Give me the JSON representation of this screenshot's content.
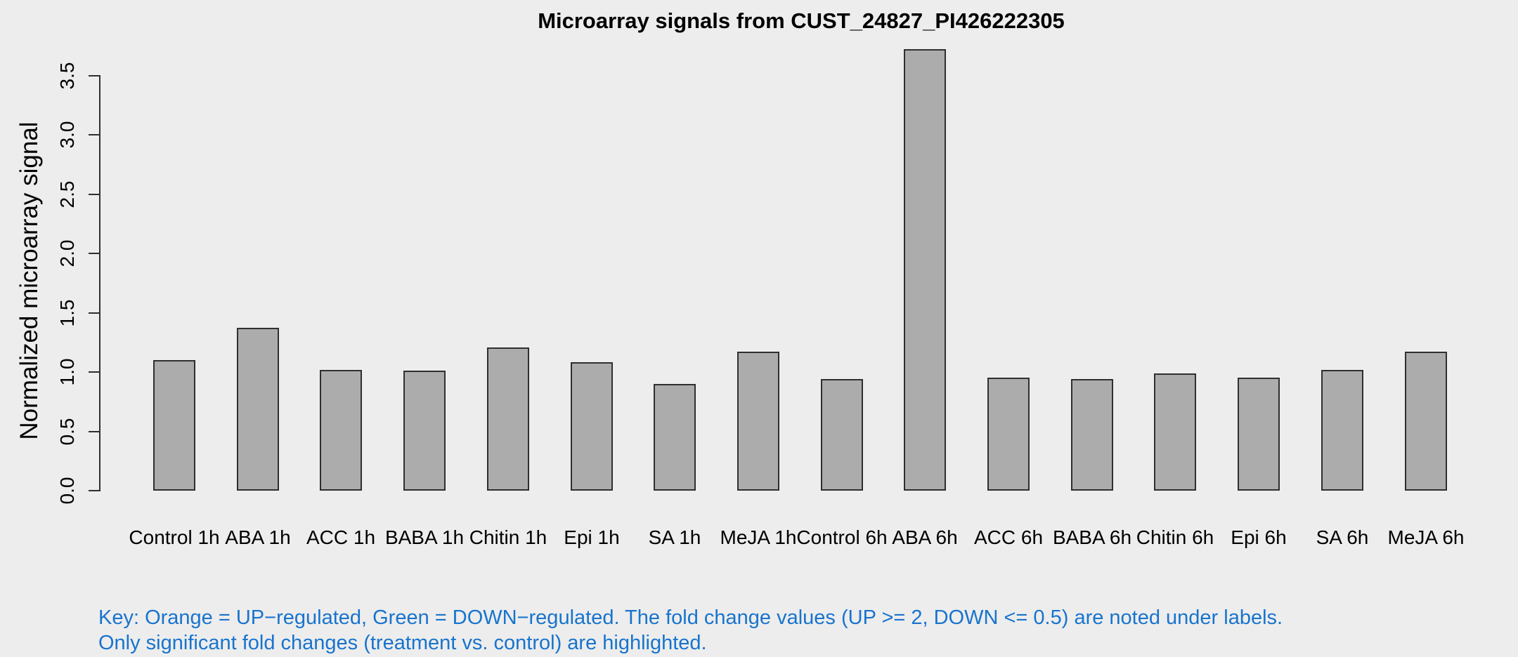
{
  "figure": {
    "background_color": "#EDEDED",
    "key_line1": "Key: Orange = UP−regulated, Green = DOWN−regulated. The fold change values (UP >= 2, DOWN <= 0.5) are noted under labels.",
    "key_line2": "Only significant fold changes (treatment vs. control) are highlighted.",
    "key_text_color": "#1874CD"
  },
  "chart_data": {
    "type": "bar",
    "title": "Microarray signals from CUST_24827_PI426222305",
    "xlabel": "",
    "ylabel": "Normalized microarray signal",
    "categories": [
      "Control 1h",
      "ABA 1h",
      "ACC 1h",
      "BABA 1h",
      "Chitin 1h",
      "Epi 1h",
      "SA 1h",
      "MeJA 1h",
      "Control 6h",
      "ABA 6h",
      "ACC 6h",
      "BABA 6h",
      "Chitin 6h",
      "Epi 6h",
      "SA 6h",
      "MeJA 6h"
    ],
    "values": [
      1.1,
      1.37,
      1.02,
      1.01,
      1.21,
      1.08,
      0.9,
      1.17,
      0.94,
      3.72,
      0.95,
      0.94,
      0.99,
      0.95,
      1.02,
      1.17
    ],
    "yticks": [
      0.0,
      0.5,
      1.0,
      1.5,
      2.0,
      2.5,
      3.0,
      3.5
    ],
    "ylim": [
      0,
      3.72
    ],
    "grid": false,
    "legend": "none",
    "bar_fill_color": "#ACACAC",
    "bar_border_color": "#2F2F2F",
    "axis_color": "#2F2F2F"
  }
}
